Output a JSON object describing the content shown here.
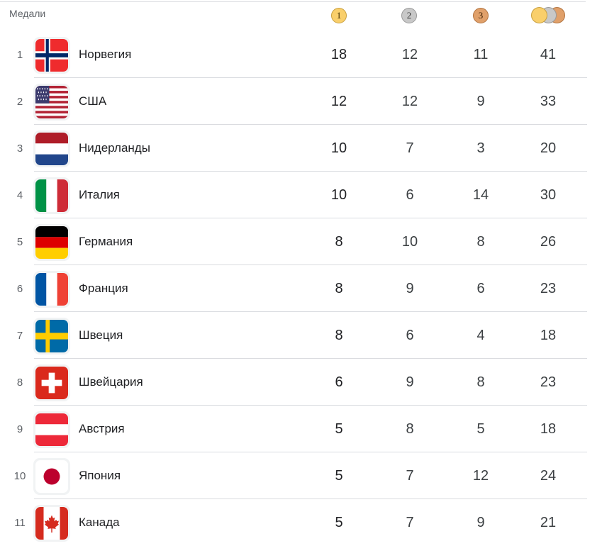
{
  "header": {
    "label": "Медали",
    "gold_label": "1",
    "silver_label": "2",
    "bronze_label": "3"
  },
  "colors": {
    "gold": "#f9cf6b",
    "silver": "#c8c8c8",
    "bronze": "#e0a06a",
    "divider": "#dadce0"
  },
  "rows": [
    {
      "rank": "1",
      "country": "Норвегия",
      "flag": "norway-flag-icon",
      "gold": "18",
      "silver": "12",
      "bronze": "11",
      "total": "41"
    },
    {
      "rank": "2",
      "country": "США",
      "flag": "usa-flag-icon",
      "gold": "12",
      "silver": "12",
      "bronze": "9",
      "total": "33"
    },
    {
      "rank": "3",
      "country": "Нидерланды",
      "flag": "netherlands-flag-icon",
      "gold": "10",
      "silver": "7",
      "bronze": "3",
      "total": "20"
    },
    {
      "rank": "4",
      "country": "Италия",
      "flag": "italy-flag-icon",
      "gold": "10",
      "silver": "6",
      "bronze": "14",
      "total": "30"
    },
    {
      "rank": "5",
      "country": "Германия",
      "flag": "germany-flag-icon",
      "gold": "8",
      "silver": "10",
      "bronze": "8",
      "total": "26"
    },
    {
      "rank": "6",
      "country": "Франция",
      "flag": "france-flag-icon",
      "gold": "8",
      "silver": "9",
      "bronze": "6",
      "total": "23"
    },
    {
      "rank": "7",
      "country": "Швеция",
      "flag": "sweden-flag-icon",
      "gold": "8",
      "silver": "6",
      "bronze": "4",
      "total": "18"
    },
    {
      "rank": "8",
      "country": "Швейцария",
      "flag": "switzerland-flag-icon",
      "gold": "6",
      "silver": "9",
      "bronze": "8",
      "total": "23"
    },
    {
      "rank": "9",
      "country": "Австрия",
      "flag": "austria-flag-icon",
      "gold": "5",
      "silver": "8",
      "bronze": "5",
      "total": "18"
    },
    {
      "rank": "10",
      "country": "Япония",
      "flag": "japan-flag-icon",
      "gold": "5",
      "silver": "7",
      "bronze": "12",
      "total": "24"
    },
    {
      "rank": "11",
      "country": "Канада",
      "flag": "canada-flag-icon",
      "gold": "5",
      "silver": "7",
      "bronze": "9",
      "total": "21"
    }
  ]
}
